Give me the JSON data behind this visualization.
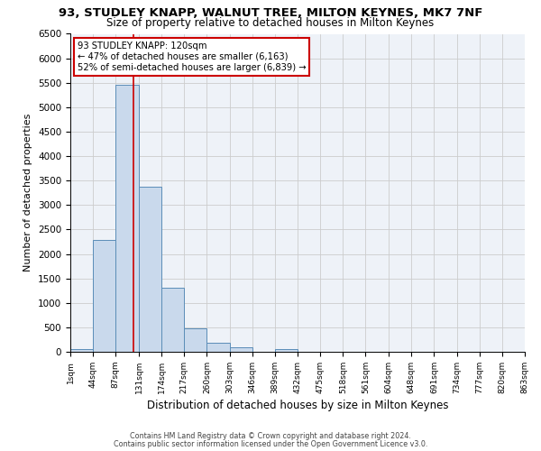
{
  "title": "93, STUDLEY KNAPP, WALNUT TREE, MILTON KEYNES, MK7 7NF",
  "subtitle": "Size of property relative to detached houses in Milton Keynes",
  "xlabel": "Distribution of detached houses by size in Milton Keynes",
  "ylabel": "Number of detached properties",
  "bar_heights": [
    50,
    2280,
    5450,
    3380,
    1310,
    480,
    190,
    95,
    0,
    50,
    0,
    0,
    0,
    0,
    0,
    0,
    0,
    0,
    0,
    0
  ],
  "bin_edges": [
    1,
    44,
    87,
    131,
    174,
    217,
    260,
    303,
    346,
    389,
    432,
    475,
    518,
    561,
    604,
    648,
    691,
    734,
    777,
    820,
    863
  ],
  "tick_labels": [
    "1sqm",
    "44sqm",
    "87sqm",
    "131sqm",
    "174sqm",
    "217sqm",
    "260sqm",
    "303sqm",
    "346sqm",
    "389sqm",
    "432sqm",
    "475sqm",
    "518sqm",
    "561sqm",
    "604sqm",
    "648sqm",
    "691sqm",
    "734sqm",
    "777sqm",
    "820sqm",
    "863sqm"
  ],
  "vline_x": 120,
  "bar_facecolor": "#c9d9ec",
  "bar_edgecolor": "#5b8db8",
  "vline_color": "#cc0000",
  "grid_color": "#cccccc",
  "background_color": "#eef2f8",
  "annotation_line1": "93 STUDLEY KNAPP: 120sqm",
  "annotation_line2": "← 47% of detached houses are smaller (6,163)",
  "annotation_line3": "52% of semi-detached houses are larger (6,839) →",
  "annotation_box_edgecolor": "#cc0000",
  "ylim": [
    0,
    6500
  ],
  "footer1": "Contains HM Land Registry data © Crown copyright and database right 2024.",
  "footer2": "Contains public sector information licensed under the Open Government Licence v3.0."
}
